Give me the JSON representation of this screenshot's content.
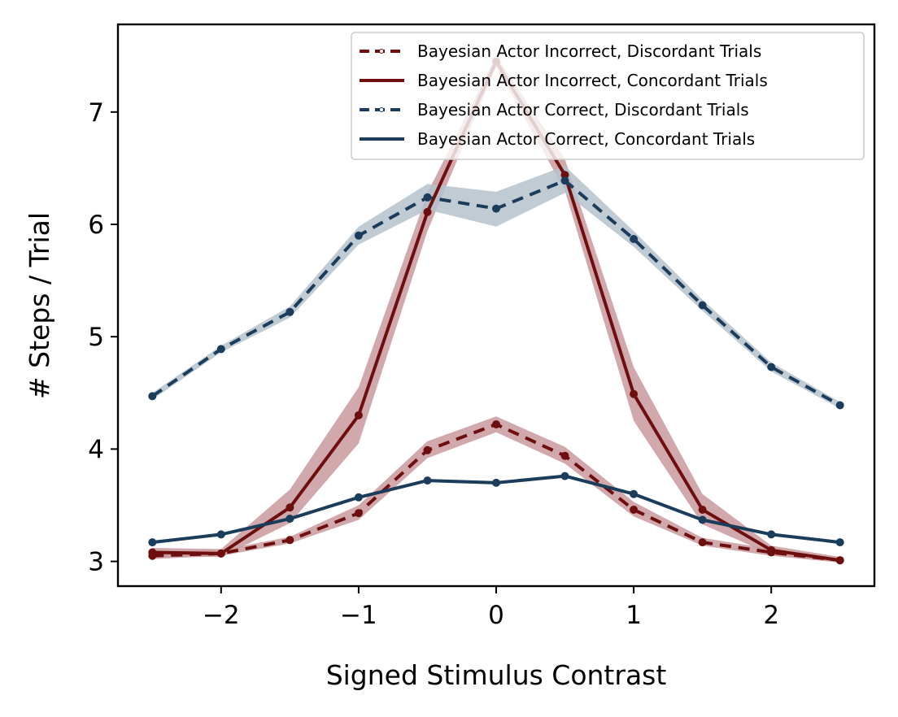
{
  "chart_data": {
    "type": "line",
    "title": "",
    "xlabel": "Signed Stimulus Contrast",
    "ylabel": "# Steps / Trial",
    "xlim": [
      -2.75,
      2.75
    ],
    "ylim": [
      2.78,
      7.78
    ],
    "xticks": [
      -2,
      -1,
      0,
      1,
      2
    ],
    "xtick_labels": [
      "−2",
      "−1",
      "0",
      "1",
      "2"
    ],
    "yticks": [
      3,
      4,
      5,
      6,
      7
    ],
    "ytick_labels": [
      "3",
      "4",
      "5",
      "6",
      "7"
    ],
    "grid": false,
    "legend_position": "top-right",
    "x": [
      -2.5,
      -2.0,
      -1.5,
      -1.0,
      -0.5,
      0.0,
      0.5,
      1.0,
      1.5,
      2.0,
      2.5
    ],
    "series": [
      {
        "name": "Bayesian Actor Incorrect, Discordant Trials",
        "style": "dashed",
        "color": "#6e0f0f",
        "band_color": "#c99a9e",
        "values": [
          3.05,
          3.07,
          3.19,
          3.43,
          3.99,
          4.22,
          3.94,
          3.46,
          3.17,
          3.08,
          3.01
        ],
        "lower": [
          3.02,
          3.05,
          3.16,
          3.37,
          3.92,
          4.15,
          3.87,
          3.4,
          3.14,
          3.05,
          2.99
        ],
        "upper": [
          3.09,
          3.1,
          3.22,
          3.5,
          4.07,
          4.29,
          4.02,
          3.53,
          3.21,
          3.11,
          3.03
        ]
      },
      {
        "name": "Bayesian Actor Incorrect, Concordant Trials",
        "style": "solid",
        "color": "#6e0f0f",
        "band_color": "#c99a9e",
        "values": [
          3.08,
          3.07,
          3.48,
          4.3,
          6.11,
          7.45,
          6.44,
          4.49,
          3.46,
          3.1,
          3.01
        ],
        "lower": [
          3.04,
          3.04,
          3.34,
          4.05,
          5.94,
          7.4,
          6.3,
          4.25,
          3.33,
          3.06,
          2.99
        ],
        "upper": [
          3.12,
          3.11,
          3.64,
          4.55,
          6.28,
          7.5,
          6.58,
          4.73,
          3.6,
          3.14,
          3.04
        ]
      },
      {
        "name": "Bayesian Actor Correct, Discordant Trials",
        "style": "dashed",
        "color": "#1b3c5a",
        "band_color": "#b5c2cd",
        "values": [
          4.47,
          4.89,
          5.22,
          5.9,
          6.24,
          6.14,
          6.39,
          5.87,
          5.28,
          4.73,
          4.39
        ],
        "lower": [
          4.44,
          4.86,
          5.17,
          5.82,
          6.13,
          5.98,
          6.28,
          5.8,
          5.23,
          4.69,
          4.36
        ],
        "upper": [
          4.5,
          4.92,
          5.27,
          5.98,
          6.36,
          6.29,
          6.52,
          5.94,
          5.33,
          4.77,
          4.42
        ]
      },
      {
        "name": "Bayesian Actor Correct, Concordant Trials",
        "style": "solid",
        "color": "#1b3c5a",
        "band_color": "#b5c2cd",
        "values": [
          3.17,
          3.24,
          3.38,
          3.57,
          3.72,
          3.7,
          3.76,
          3.6,
          3.37,
          3.24,
          3.17
        ],
        "lower": [
          3.16,
          3.23,
          3.37,
          3.56,
          3.71,
          3.69,
          3.75,
          3.59,
          3.36,
          3.23,
          3.16
        ],
        "upper": [
          3.18,
          3.25,
          3.39,
          3.58,
          3.73,
          3.71,
          3.77,
          3.61,
          3.38,
          3.25,
          3.18
        ]
      }
    ]
  }
}
